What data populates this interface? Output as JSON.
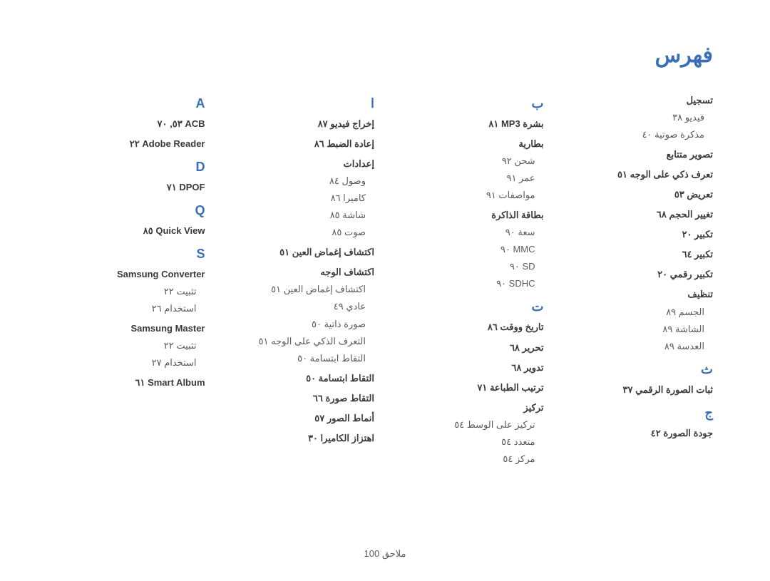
{
  "title": "فهرس",
  "footer": "ملاحق  100",
  "colors": {
    "accent": "#3a6fb7",
    "text_bold": "#3a3a3a",
    "text": "#5a5a5a",
    "background": "#ffffff"
  },
  "typography": {
    "title_fontsize": 30,
    "letter_fontsize": 18,
    "entry_fontsize": 13,
    "line_height": 1.85
  },
  "columns": [
    {
      "blocks": [
        {
          "type": "letter",
          "text": "A"
        },
        {
          "type": "bold",
          "text": "ACB  ٥٣, ٧٠"
        },
        {
          "type": "bold",
          "text": "Adobe Reader  ٢٢"
        },
        {
          "type": "letter",
          "text": "D"
        },
        {
          "type": "bold",
          "text": "DPOF  ٧١"
        },
        {
          "type": "letter",
          "text": "Q"
        },
        {
          "type": "bold",
          "text": "Quick View  ٨٥"
        },
        {
          "type": "letter",
          "text": "S"
        },
        {
          "type": "bold",
          "text": "Samsung Converter"
        },
        {
          "type": "sub",
          "text": "تثبيت  ٢٢"
        },
        {
          "type": "sub",
          "text": "استخدام  ٢٦"
        },
        {
          "type": "bold",
          "text": "Samsung Master"
        },
        {
          "type": "sub",
          "text": "تثبيت  ٢٢"
        },
        {
          "type": "sub",
          "text": "استخدام  ٢٧"
        },
        {
          "type": "bold",
          "text": "Smart Album  ٦١"
        }
      ]
    },
    {
      "blocks": [
        {
          "type": "letter",
          "text": "ا"
        },
        {
          "type": "bold",
          "text": "إخراج فيديو  ٨٧"
        },
        {
          "type": "bold",
          "text": "إعادة الضبط  ٨٦"
        },
        {
          "type": "bold",
          "text": "إعدادات"
        },
        {
          "type": "sub",
          "text": "وصول  ٨٤"
        },
        {
          "type": "sub",
          "text": "كاميرا  ٨٦"
        },
        {
          "type": "sub",
          "text": "شاشة  ٨٥"
        },
        {
          "type": "sub",
          "text": "صوت  ٨٥"
        },
        {
          "type": "bold",
          "text": "اكتشاف إغماض العين  ٥١"
        },
        {
          "type": "bold",
          "text": "اكتشاف الوجه"
        },
        {
          "type": "sub",
          "text": "اكتشاف إغماض العين  ٥١"
        },
        {
          "type": "sub",
          "text": "عادي  ٤٩"
        },
        {
          "type": "sub",
          "text": "صورة ذاتية  ٥٠"
        },
        {
          "type": "sub",
          "text": "التعرف الذكي على الوجه  ٥١"
        },
        {
          "type": "sub",
          "text": "التقاط ابتسامة  ٥٠"
        },
        {
          "type": "bold",
          "text": "التقاط ابتسامة  ٥٠"
        },
        {
          "type": "bold",
          "text": "التقاط صورة  ٦٦"
        },
        {
          "type": "bold",
          "text": "أنماط الصور  ٥٧"
        },
        {
          "type": "bold",
          "text": "اهتزاز الكاميرا  ٣٠"
        }
      ]
    },
    {
      "blocks": [
        {
          "type": "letter",
          "text": "ب"
        },
        {
          "type": "bold",
          "text": "بشرة MP3  ٨١"
        },
        {
          "type": "bold",
          "text": "بطارية"
        },
        {
          "type": "sub",
          "text": "شحن  ٩٢"
        },
        {
          "type": "sub",
          "text": "عمر  ٩١"
        },
        {
          "type": "sub",
          "text": "مواصفات  ٩١"
        },
        {
          "type": "bold",
          "text": "بطاقة الذاكرة"
        },
        {
          "type": "sub",
          "text": "سعة  ٩٠"
        },
        {
          "type": "sub",
          "text": "MMC  ٩٠"
        },
        {
          "type": "sub",
          "text": "SD  ٩٠"
        },
        {
          "type": "sub",
          "text": "SDHC  ٩٠"
        },
        {
          "type": "letter",
          "text": "ت"
        },
        {
          "type": "bold",
          "text": "تاريخ ووقت  ٨٦"
        },
        {
          "type": "bold",
          "text": "تحرير  ٦٨"
        },
        {
          "type": "bold",
          "text": "تدوير  ٦٨"
        },
        {
          "type": "bold",
          "text": "ترتيب الطباعة  ٧١"
        },
        {
          "type": "bold",
          "text": "تركيز"
        },
        {
          "type": "sub",
          "text": "تركيز على الوسط  ٥٤"
        },
        {
          "type": "sub",
          "text": "متعدد  ٥٤"
        },
        {
          "type": "sub",
          "text": "مركز  ٥٤"
        }
      ]
    },
    {
      "blocks": [
        {
          "type": "bold",
          "text": "تسجيل"
        },
        {
          "type": "sub",
          "text": "فيديو  ٣٨"
        },
        {
          "type": "sub",
          "text": "مذكرة صوتية  ٤٠"
        },
        {
          "type": "bold",
          "text": "تصوير متتابع"
        },
        {
          "type": "bold",
          "text": "تعرف ذكي على الوجه  ٥١"
        },
        {
          "type": "bold",
          "text": "تعريض  ٥٣"
        },
        {
          "type": "bold",
          "text": "تغيير الحجم  ٦٨"
        },
        {
          "type": "bold",
          "text": "تكبير  ٢٠"
        },
        {
          "type": "bold",
          "text": "تكبير  ٦٤"
        },
        {
          "type": "bold",
          "text": "تكبير رقمي  ٢٠"
        },
        {
          "type": "bold",
          "text": "تنظيف"
        },
        {
          "type": "sub",
          "text": "الجسم  ٨٩"
        },
        {
          "type": "sub",
          "text": "الشاشة  ٨٩"
        },
        {
          "type": "sub",
          "text": "العدسة  ٨٩"
        },
        {
          "type": "letter",
          "text": "ث"
        },
        {
          "type": "bold",
          "text": "ثبات الصورة الرقمي  ٣٧"
        },
        {
          "type": "letter",
          "text": "ج"
        },
        {
          "type": "bold",
          "text": "جودة الصورة  ٤٢"
        }
      ]
    }
  ]
}
